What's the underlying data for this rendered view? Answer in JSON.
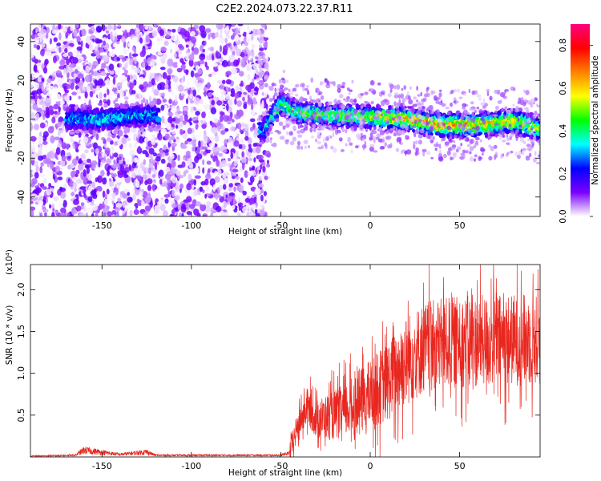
{
  "title": "C2E2.2024.073.22.37.R11",
  "chart_data": [
    {
      "type": "heatmap",
      "xlabel": "Height of straight line (km)",
      "ylabel": "Frequency (Hz)",
      "xlim": [
        -190,
        95
      ],
      "ylim": [
        -50,
        49
      ],
      "xticks": [
        -150,
        -100,
        -50,
        0,
        50
      ],
      "yticks": [
        -40,
        -20,
        0,
        20,
        40
      ],
      "colorbar": {
        "label": "Normalized spectral amplitude",
        "range": [
          0.0,
          0.9
        ],
        "ticks": [
          0.0,
          0.2,
          0.4,
          0.6,
          0.8
        ],
        "colormap": [
          "#ffffff",
          "#7b00ff",
          "#0000ff",
          "#00ffff",
          "#00ff00",
          "#ffff00",
          "#ff8000",
          "#ff0000",
          "#ff0080"
        ]
      },
      "noise_region": {
        "x_range": [
          -190,
          -57
        ],
        "amplitude_range": [
          0.0,
          0.15
        ]
      },
      "ridge": {
        "x": [
          -170,
          -150,
          -130,
          -120,
          -60,
          -50,
          -40,
          -20,
          0,
          20,
          40,
          60,
          80,
          95
        ],
        "frequency": [
          0,
          0,
          2,
          2,
          -6,
          8,
          3,
          2,
          1,
          0,
          -3,
          -3,
          -1,
          -5
        ],
        "amplitude": [
          0.3,
          0.35,
          0.3,
          0.3,
          0.3,
          0.4,
          0.45,
          0.45,
          0.5,
          0.6,
          0.65,
          0.6,
          0.55,
          0.5
        ]
      }
    },
    {
      "type": "line",
      "xlabel": "Height of straight line (km)",
      "ylabel": "SNR (10 * v/v)",
      "scale_note": "(x10⁴)",
      "xlim": [
        -190,
        95
      ],
      "ylim": [
        0,
        2.3
      ],
      "xticks": [
        -150,
        -100,
        -50,
        0,
        50
      ],
      "yticks": [
        0.5,
        1.0,
        1.5,
        2.0
      ],
      "series": [
        {
          "color": "#e8271f",
          "x": [
            -190,
            -165,
            -160,
            -140,
            -125,
            -120,
            -50,
            -45,
            -40,
            -35,
            -30,
            -20,
            -10,
            0,
            10,
            20,
            30,
            40,
            50,
            60,
            70,
            80,
            95
          ],
          "values": [
            0.01,
            0.02,
            0.08,
            0.03,
            0.06,
            0.02,
            0.02,
            0.05,
            0.4,
            0.6,
            0.45,
            0.5,
            0.6,
            0.75,
            0.9,
            1.15,
            1.3,
            1.35,
            1.38,
            1.38,
            1.4,
            1.4,
            1.4
          ]
        }
      ]
    }
  ]
}
